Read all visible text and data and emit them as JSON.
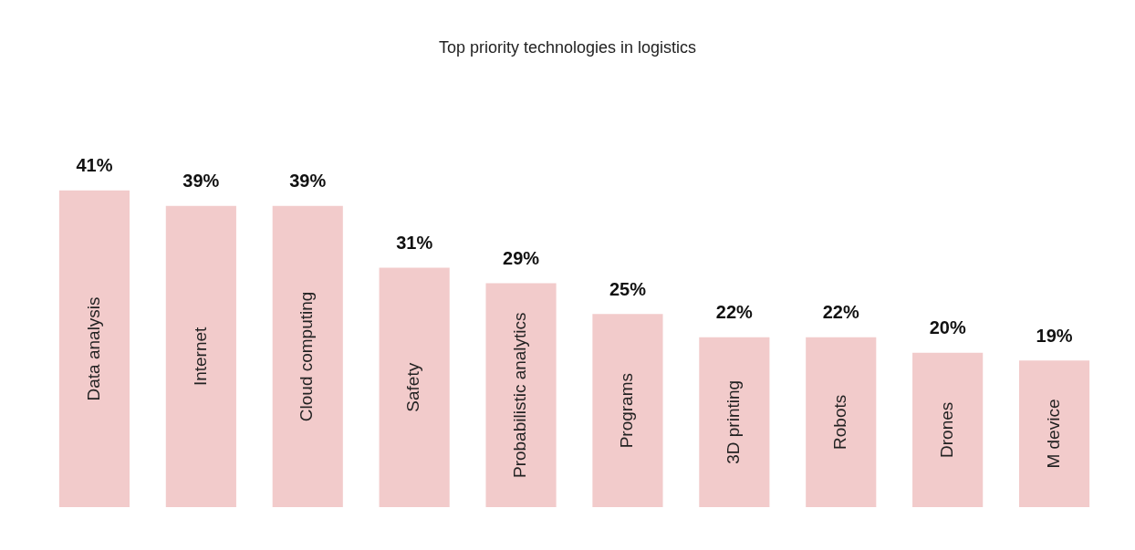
{
  "chart_data": {
    "type": "bar",
    "title": "Top priority technologies in logistics",
    "categories": [
      "Data analysis",
      "Internet",
      "Cloud computing",
      "Safety",
      "Probabilistic analytics",
      "Programs",
      "3D printing",
      "Robots",
      "Drones",
      "M device"
    ],
    "values": [
      41,
      39,
      39,
      31,
      29,
      25,
      22,
      22,
      20,
      19
    ],
    "value_labels": [
      "41%",
      "39%",
      "39%",
      "31%",
      "29%",
      "25%",
      "22%",
      "22%",
      "20%",
      "19%"
    ],
    "color": "#f2cbcb"
  }
}
